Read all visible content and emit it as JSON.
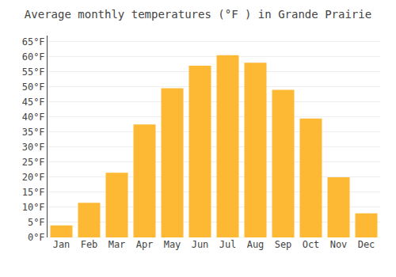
{
  "chart_data": {
    "type": "bar",
    "title": "Average monthly temperatures (°F ) in Grande Prairie",
    "categories": [
      "Jan",
      "Feb",
      "Mar",
      "Apr",
      "May",
      "Jun",
      "Jul",
      "Aug",
      "Sep",
      "Oct",
      "Nov",
      "Dec"
    ],
    "values": [
      4,
      11.5,
      21.5,
      37.5,
      49.5,
      57,
      60.5,
      58,
      49,
      39.5,
      20,
      8
    ],
    "color": "#FDB933",
    "ylim": [
      0,
      67
    ],
    "yticks": [
      {
        "value": 0,
        "label": "0°F"
      },
      {
        "value": 5,
        "label": "5°F"
      },
      {
        "value": 10,
        "label": "10°F"
      },
      {
        "value": 15,
        "label": "15°F"
      },
      {
        "value": 20,
        "label": "20°F"
      },
      {
        "value": 25,
        "label": "25°F"
      },
      {
        "value": 30,
        "label": "30°F"
      },
      {
        "value": 35,
        "label": "35°F"
      },
      {
        "value": 40,
        "label": "40°F"
      },
      {
        "value": 45,
        "label": "45°F"
      },
      {
        "value": 50,
        "label": "50°F"
      },
      {
        "value": 55,
        "label": "55°F"
      },
      {
        "value": 60,
        "label": "60°F"
      },
      {
        "value": 65,
        "label": "65°F"
      }
    ],
    "grid": true
  }
}
